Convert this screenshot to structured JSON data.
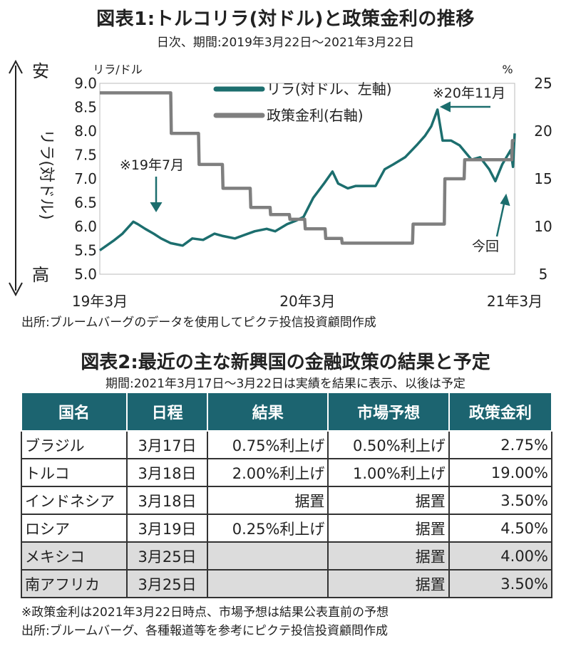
{
  "chart_title": "図表1:トルコリラ(対ドル)と政策金利の推移",
  "chart_subtitle": "日次、期間:2019年3月22日～2021年3月22日",
  "chart_source": "出所:ブルームバーグのデータを使用してピクテ投信投資顧問作成",
  "colors": {
    "lira": "#1c6e6e",
    "rate": "#7f7f7f",
    "header": "#1c6470",
    "shade": "#dcdcdc"
  },
  "chart_data": {
    "type": "line",
    "left_axis": {
      "unit_label": "リラ/ドル",
      "ylim": [
        5.0,
        9.0
      ],
      "ticks": [
        "9.0",
        "8.5",
        "8.0",
        "7.5",
        "7.0",
        "6.5",
        "6.0",
        "5.5",
        "5.0"
      ],
      "side_label": "リラ(対ドル)",
      "top_label": "安",
      "bottom_label": "高"
    },
    "right_axis": {
      "unit_label": "%",
      "ylim": [
        5,
        25
      ],
      "ticks": [
        "25",
        "20",
        "15",
        "10",
        "5"
      ]
    },
    "x_axis": {
      "range": [
        "2019-03-22",
        "2021-03-22"
      ],
      "ticks": [
        "19年3月",
        "20年3月",
        "21年3月"
      ]
    },
    "series": [
      {
        "name": "リラ(対ドル、左軸)",
        "axis": "left",
        "points": [
          [
            "2019-03-22",
            5.5
          ],
          [
            "2019-04-15",
            5.7
          ],
          [
            "2019-05-01",
            5.85
          ],
          [
            "2019-05-20",
            6.1
          ],
          [
            "2019-05-28",
            6.05
          ],
          [
            "2019-06-10",
            5.95
          ],
          [
            "2019-06-25",
            5.85
          ],
          [
            "2019-07-08",
            5.75
          ],
          [
            "2019-07-25",
            5.65
          ],
          [
            "2019-08-15",
            5.6
          ],
          [
            "2019-09-01",
            5.75
          ],
          [
            "2019-09-20",
            5.72
          ],
          [
            "2019-10-10",
            5.85
          ],
          [
            "2019-10-25",
            5.8
          ],
          [
            "2019-11-15",
            5.75
          ],
          [
            "2019-12-01",
            5.82
          ],
          [
            "2019-12-20",
            5.9
          ],
          [
            "2020-01-10",
            5.95
          ],
          [
            "2020-01-25",
            5.9
          ],
          [
            "2020-02-15",
            6.05
          ],
          [
            "2020-03-01",
            6.12
          ],
          [
            "2020-03-15",
            6.2
          ],
          [
            "2020-04-01",
            6.6
          ],
          [
            "2020-04-20",
            6.9
          ],
          [
            "2020-05-05",
            7.15
          ],
          [
            "2020-05-15",
            6.9
          ],
          [
            "2020-06-01",
            6.8
          ],
          [
            "2020-06-15",
            6.85
          ],
          [
            "2020-07-01",
            6.85
          ],
          [
            "2020-07-20",
            6.85
          ],
          [
            "2020-08-05",
            7.2
          ],
          [
            "2020-08-20",
            7.3
          ],
          [
            "2020-09-10",
            7.45
          ],
          [
            "2020-09-30",
            7.7
          ],
          [
            "2020-10-15",
            7.9
          ],
          [
            "2020-10-26",
            8.1
          ],
          [
            "2020-11-06",
            8.45
          ],
          [
            "2020-11-15",
            7.8
          ],
          [
            "2020-11-30",
            7.8
          ],
          [
            "2020-12-15",
            7.7
          ],
          [
            "2021-01-05",
            7.4
          ],
          [
            "2021-01-20",
            7.45
          ],
          [
            "2021-02-05",
            7.2
          ],
          [
            "2021-02-16",
            6.95
          ],
          [
            "2021-02-28",
            7.3
          ],
          [
            "2021-03-10",
            7.5
          ],
          [
            "2021-03-15",
            7.6
          ],
          [
            "2021-03-19",
            7.25
          ],
          [
            "2021-03-22",
            7.95
          ]
        ]
      },
      {
        "name": "政策金利(右軸)",
        "axis": "right",
        "points": [
          [
            "2019-03-22",
            24
          ],
          [
            "2019-07-25",
            24
          ],
          [
            "2019-07-26",
            19.75
          ],
          [
            "2019-09-12",
            19.75
          ],
          [
            "2019-09-13",
            16.5
          ],
          [
            "2019-10-24",
            16.5
          ],
          [
            "2019-10-25",
            14
          ],
          [
            "2019-12-12",
            14
          ],
          [
            "2019-12-13",
            12
          ],
          [
            "2020-01-16",
            12
          ],
          [
            "2020-01-17",
            11.25
          ],
          [
            "2020-02-19",
            11.25
          ],
          [
            "2020-02-20",
            10.75
          ],
          [
            "2020-03-17",
            10.75
          ],
          [
            "2020-03-18",
            9.75
          ],
          [
            "2020-04-22",
            9.75
          ],
          [
            "2020-04-23",
            8.75
          ],
          [
            "2020-05-21",
            8.75
          ],
          [
            "2020-05-22",
            8.25
          ],
          [
            "2020-09-23",
            8.25
          ],
          [
            "2020-09-24",
            10.25
          ],
          [
            "2020-11-18",
            10.25
          ],
          [
            "2020-11-19",
            15
          ],
          [
            "2020-12-23",
            15
          ],
          [
            "2020-12-24",
            17
          ],
          [
            "2021-03-17",
            17
          ],
          [
            "2021-03-18",
            19
          ],
          [
            "2021-03-22",
            19
          ]
        ]
      }
    ],
    "annotations": [
      {
        "text": "※19年7月",
        "date": "2019-07-20",
        "value": 6.0
      },
      {
        "text": "※20年11月",
        "date": "2020-11-06",
        "value": 8.45
      },
      {
        "text": "今回",
        "date": "2021-03-18",
        "value": 7.6
      }
    ]
  },
  "table_title": "図表2:最近の主な新興国の金融政策の結果と予定",
  "table_subtitle": "期間:2021年3月17日～3月22日は実績を結果に表示、以後は予定",
  "table": {
    "headers": [
      "国名",
      "日程",
      "結果",
      "市場予想",
      "政策金利"
    ],
    "rows": [
      {
        "name": "ブラジル",
        "date": "3月17日",
        "result": "0.75%利上げ",
        "forecast": "0.50%利上げ",
        "rate": "2.75%"
      },
      {
        "name": "トルコ",
        "date": "3月18日",
        "result": "2.00%利上げ",
        "forecast": "1.00%利上げ",
        "rate": "19.00%"
      },
      {
        "name": "インドネシア",
        "date": "3月18日",
        "result": "据置",
        "forecast": "据置",
        "rate": "3.50%"
      },
      {
        "name": "ロシア",
        "date": "3月19日",
        "result": "0.25%利上げ",
        "forecast": "据置",
        "rate": "4.50%"
      },
      {
        "name": "メキシコ",
        "date": "3月25日",
        "result": "",
        "forecast": "据置",
        "rate": "4.00%"
      },
      {
        "name": "南アフリカ",
        "date": "3月25日",
        "result": "",
        "forecast": "据置",
        "rate": "3.50%"
      }
    ]
  },
  "note": "※政策金利は2021年3月22日時点、市場予想は結果公表直前の予想",
  "table_source": "出所:ブルームバーグ、各種報道等を参考にピクテ投信投資顧問作成"
}
